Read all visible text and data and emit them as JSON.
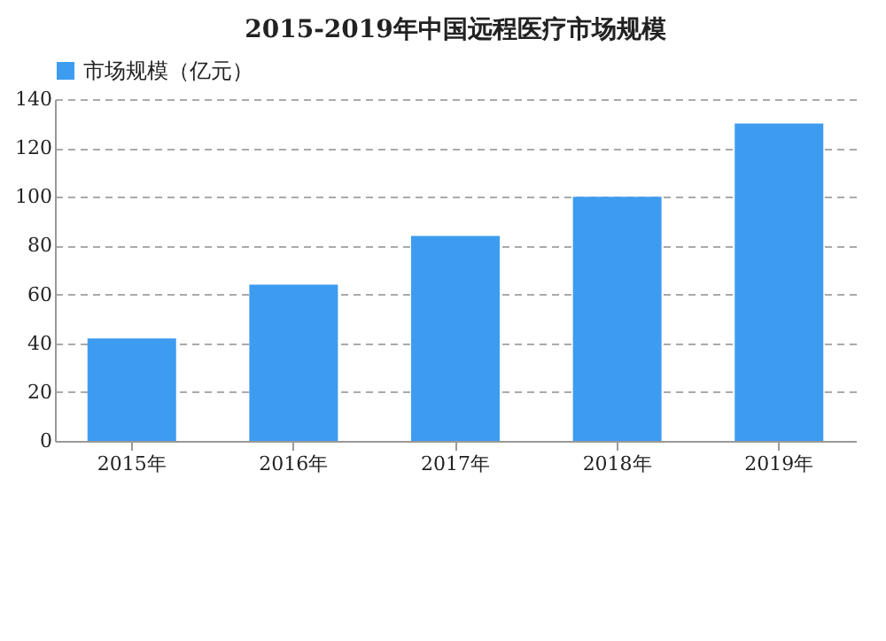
{
  "chart_data": {
    "type": "bar",
    "title": "2015-2019年中国远程医疗市场规模",
    "categories": [
      "2015年",
      "2016年",
      "2017年",
      "2018年",
      "2019年"
    ],
    "series": [
      {
        "name": "市场规模（亿元）",
        "color": "#3d9cf0",
        "values": [
          42,
          64,
          84,
          100,
          130
        ]
      }
    ],
    "ylim": [
      0,
      140
    ],
    "yticks": [
      0,
      20,
      40,
      60,
      80,
      100,
      120,
      140
    ],
    "grid": "y",
    "legend": "top"
  }
}
